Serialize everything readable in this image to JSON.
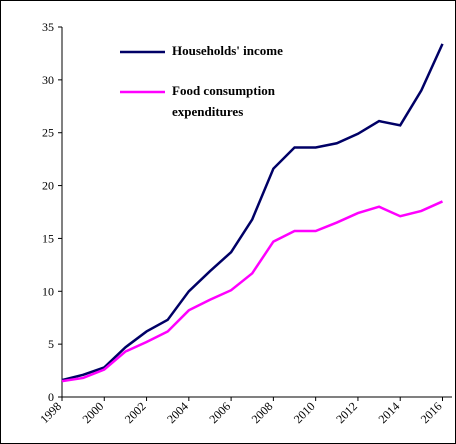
{
  "chart_data": {
    "type": "line",
    "x": [
      1998,
      1999,
      2000,
      2001,
      2002,
      2003,
      2004,
      2005,
      2006,
      2007,
      2008,
      2009,
      2010,
      2011,
      2012,
      2013,
      2014,
      2015,
      2016
    ],
    "series": [
      {
        "name": "Households' income",
        "color": "#000066",
        "values": [
          1.6,
          2.1,
          2.8,
          4.7,
          6.2,
          7.3,
          10.0,
          11.9,
          13.7,
          16.8,
          21.6,
          23.6,
          23.6,
          24.0,
          24.9,
          26.1,
          25.7,
          29.0,
          33.4
        ]
      },
      {
        "name": "Food consumption expenditures",
        "color": "#ff00ff",
        "values": [
          1.5,
          1.8,
          2.6,
          4.3,
          5.2,
          6.2,
          8.2,
          9.2,
          10.1,
          11.7,
          14.7,
          15.7,
          15.7,
          16.5,
          17.4,
          18.0,
          17.1,
          17.6,
          18.5
        ]
      }
    ],
    "xlim": [
      1998,
      2016.45
    ],
    "xticks": [
      1998,
      2000,
      2002,
      2004,
      2006,
      2008,
      2010,
      2012,
      2014,
      2016
    ],
    "ylim": [
      0,
      35
    ],
    "yticks": [
      0,
      5,
      10,
      15,
      20,
      25,
      30,
      35
    ],
    "grid": false
  }
}
